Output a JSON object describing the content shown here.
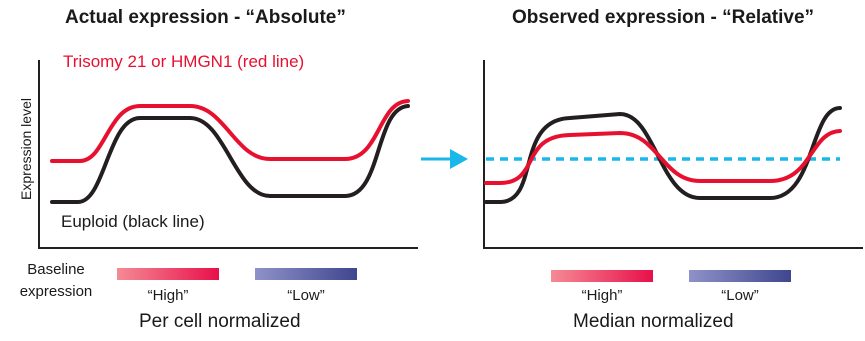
{
  "left_panel": {
    "title": "Actual expression - “Absolute”",
    "y_axis_label": "Expression level",
    "red_line_label": "Trisomy 21 or HMGN1 (red line)",
    "black_line_label": "Euploid (black line)",
    "baseline_label": "Baseline expression",
    "high_label": "“High”",
    "low_label": "“Low”",
    "footer": "Per cell normalized"
  },
  "right_panel": {
    "title": "Observed expression - “Relative”",
    "high_label": "“High”",
    "low_label": "“Low”",
    "footer": "Median normalized",
    "median_line": "dashed cyan"
  },
  "colors": {
    "red": "#e8102f",
    "black": "#231f20",
    "cyan": "#1ab7ea",
    "high_gradient": [
      "#f58a95",
      "#e8104a"
    ],
    "low_gradient": [
      "#8f92c8",
      "#3f468f"
    ]
  },
  "icons": [
    "right-arrow-icon"
  ]
}
